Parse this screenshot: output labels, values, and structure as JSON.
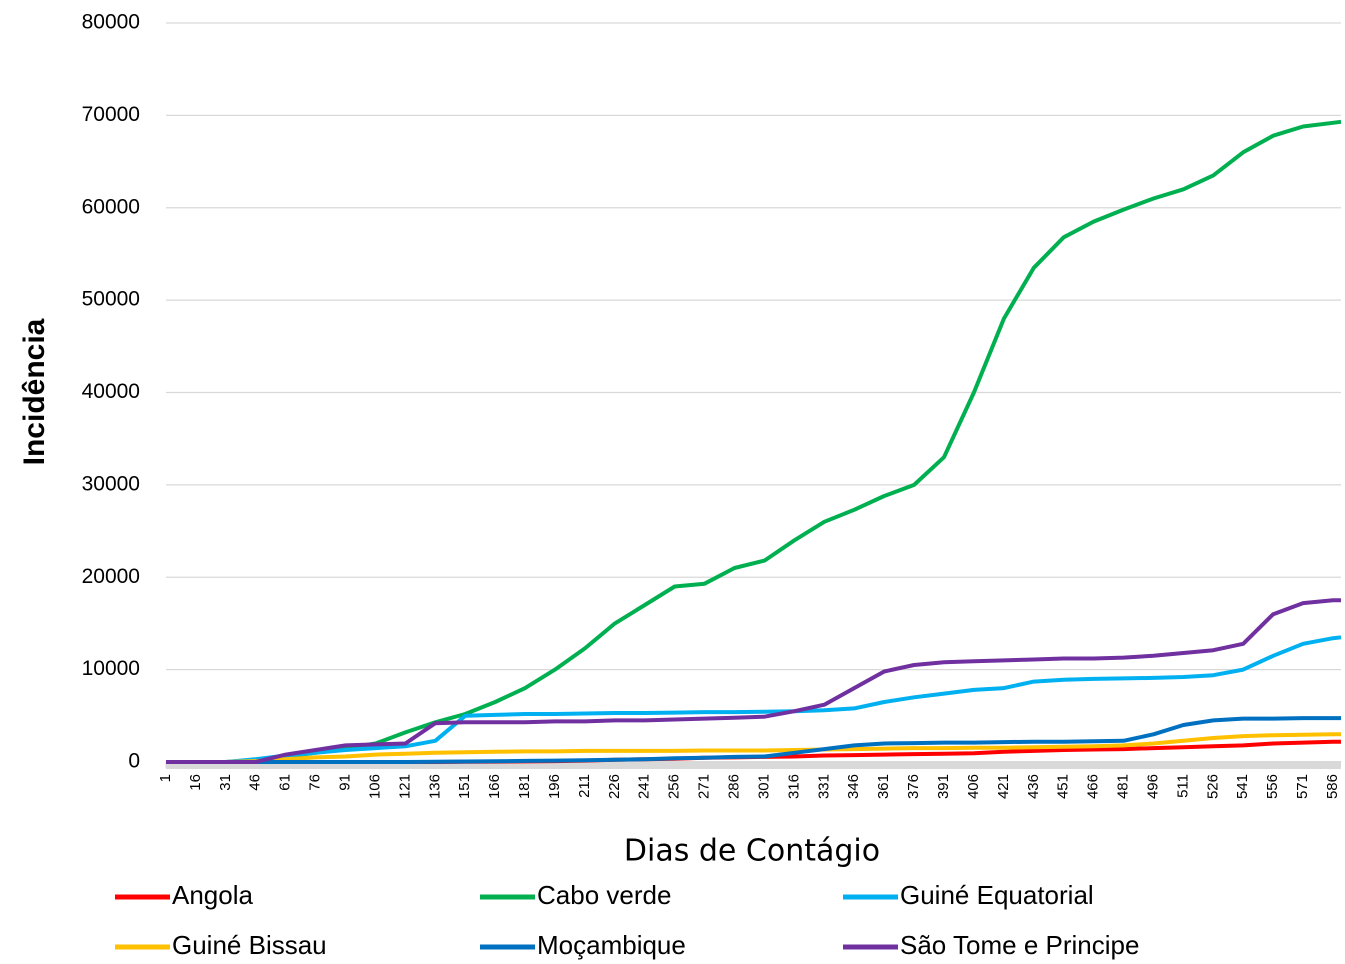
{
  "chart_data": {
    "type": "line",
    "x_label": "Dias de Contágio",
    "y_label": "Incidência",
    "x": [
      1,
      16,
      31,
      46,
      61,
      76,
      91,
      106,
      121,
      136,
      151,
      166,
      181,
      196,
      211,
      226,
      241,
      256,
      271,
      286,
      301,
      316,
      331,
      346,
      361,
      376,
      391,
      406,
      421,
      436,
      451,
      466,
      481,
      496,
      511,
      526,
      541,
      556,
      571,
      586,
      590
    ],
    "xlim": [
      1,
      590
    ],
    "xticks": [
      1,
      16,
      31,
      46,
      61,
      76,
      91,
      106,
      121,
      136,
      151,
      166,
      181,
      196,
      211,
      226,
      241,
      256,
      271,
      286,
      301,
      316,
      331,
      346,
      361,
      376,
      391,
      406,
      421,
      436,
      451,
      466,
      481,
      496,
      511,
      526,
      541,
      556,
      571,
      586
    ],
    "ylim": [
      0,
      80000
    ],
    "yticks": [
      0,
      10000,
      20000,
      30000,
      40000,
      50000,
      60000,
      70000,
      80000
    ],
    "grid": true,
    "legend": "bottom",
    "series": [
      {
        "name": "Angola",
        "color": "#ff0000",
        "values": [
          0,
          0,
          0,
          0,
          0,
          0,
          0,
          0,
          0,
          0,
          20,
          40,
          60,
          100,
          150,
          250,
          300,
          350,
          450,
          500,
          550,
          600,
          700,
          750,
          800,
          850,
          900,
          950,
          1100,
          1200,
          1300,
          1350,
          1400,
          1500,
          1600,
          1700,
          1800,
          2000,
          2100,
          2200,
          2200
        ]
      },
      {
        "name": "Cabo verde",
        "color": "#00b050",
        "values": [
          0,
          0,
          0,
          200,
          600,
          1000,
          1500,
          2000,
          3200,
          4300,
          5200,
          6500,
          8000,
          10000,
          12300,
          15000,
          17000,
          19000,
          19300,
          21000,
          21800,
          24000,
          26000,
          27300,
          28800,
          30000,
          33000,
          40000,
          48000,
          53500,
          56800,
          58500,
          59800,
          61000,
          62000,
          63500,
          66000,
          67800,
          68800,
          69200,
          69300
        ]
      },
      {
        "name": "Guiné Equatorial",
        "color": "#00b0f0",
        "values": [
          0,
          0,
          0,
          300,
          700,
          1000,
          1300,
          1500,
          1700,
          2300,
          5000,
          5100,
          5200,
          5200,
          5250,
          5300,
          5300,
          5350,
          5400,
          5400,
          5450,
          5500,
          5600,
          5800,
          6500,
          7000,
          7400,
          7800,
          8000,
          8700,
          8900,
          9000,
          9050,
          9100,
          9200,
          9400,
          10000,
          11500,
          12800,
          13400,
          13500
        ]
      },
      {
        "name": "Guiné Bissau",
        "color": "#ffc000",
        "values": [
          0,
          0,
          0,
          100,
          300,
          500,
          600,
          800,
          900,
          1000,
          1050,
          1100,
          1150,
          1150,
          1200,
          1200,
          1200,
          1200,
          1250,
          1250,
          1250,
          1300,
          1350,
          1400,
          1450,
          1500,
          1500,
          1550,
          1550,
          1600,
          1650,
          1700,
          1800,
          2000,
          2300,
          2600,
          2800,
          2900,
          2950,
          3000,
          3000
        ]
      },
      {
        "name": "Moçambique",
        "color": "#0070c0",
        "values": [
          0,
          0,
          0,
          0,
          0,
          0,
          0,
          0,
          0,
          20,
          50,
          80,
          120,
          150,
          200,
          250,
          300,
          400,
          450,
          550,
          600,
          1000,
          1400,
          1800,
          2000,
          2050,
          2100,
          2100,
          2150,
          2200,
          2200,
          2250,
          2300,
          3000,
          4000,
          4500,
          4700,
          4700,
          4750,
          4750,
          4750
        ]
      },
      {
        "name": "São Tome e Principe",
        "color": "#7030a0",
        "values": [
          0,
          0,
          0,
          0,
          800,
          1300,
          1800,
          1900,
          2000,
          4200,
          4300,
          4300,
          4300,
          4400,
          4400,
          4500,
          4500,
          4600,
          4700,
          4800,
          4900,
          5500,
          6200,
          8000,
          9800,
          10500,
          10800,
          10900,
          11000,
          11100,
          11200,
          11200,
          11300,
          11500,
          11800,
          12100,
          12800,
          16000,
          17200,
          17500,
          17500
        ]
      }
    ]
  }
}
